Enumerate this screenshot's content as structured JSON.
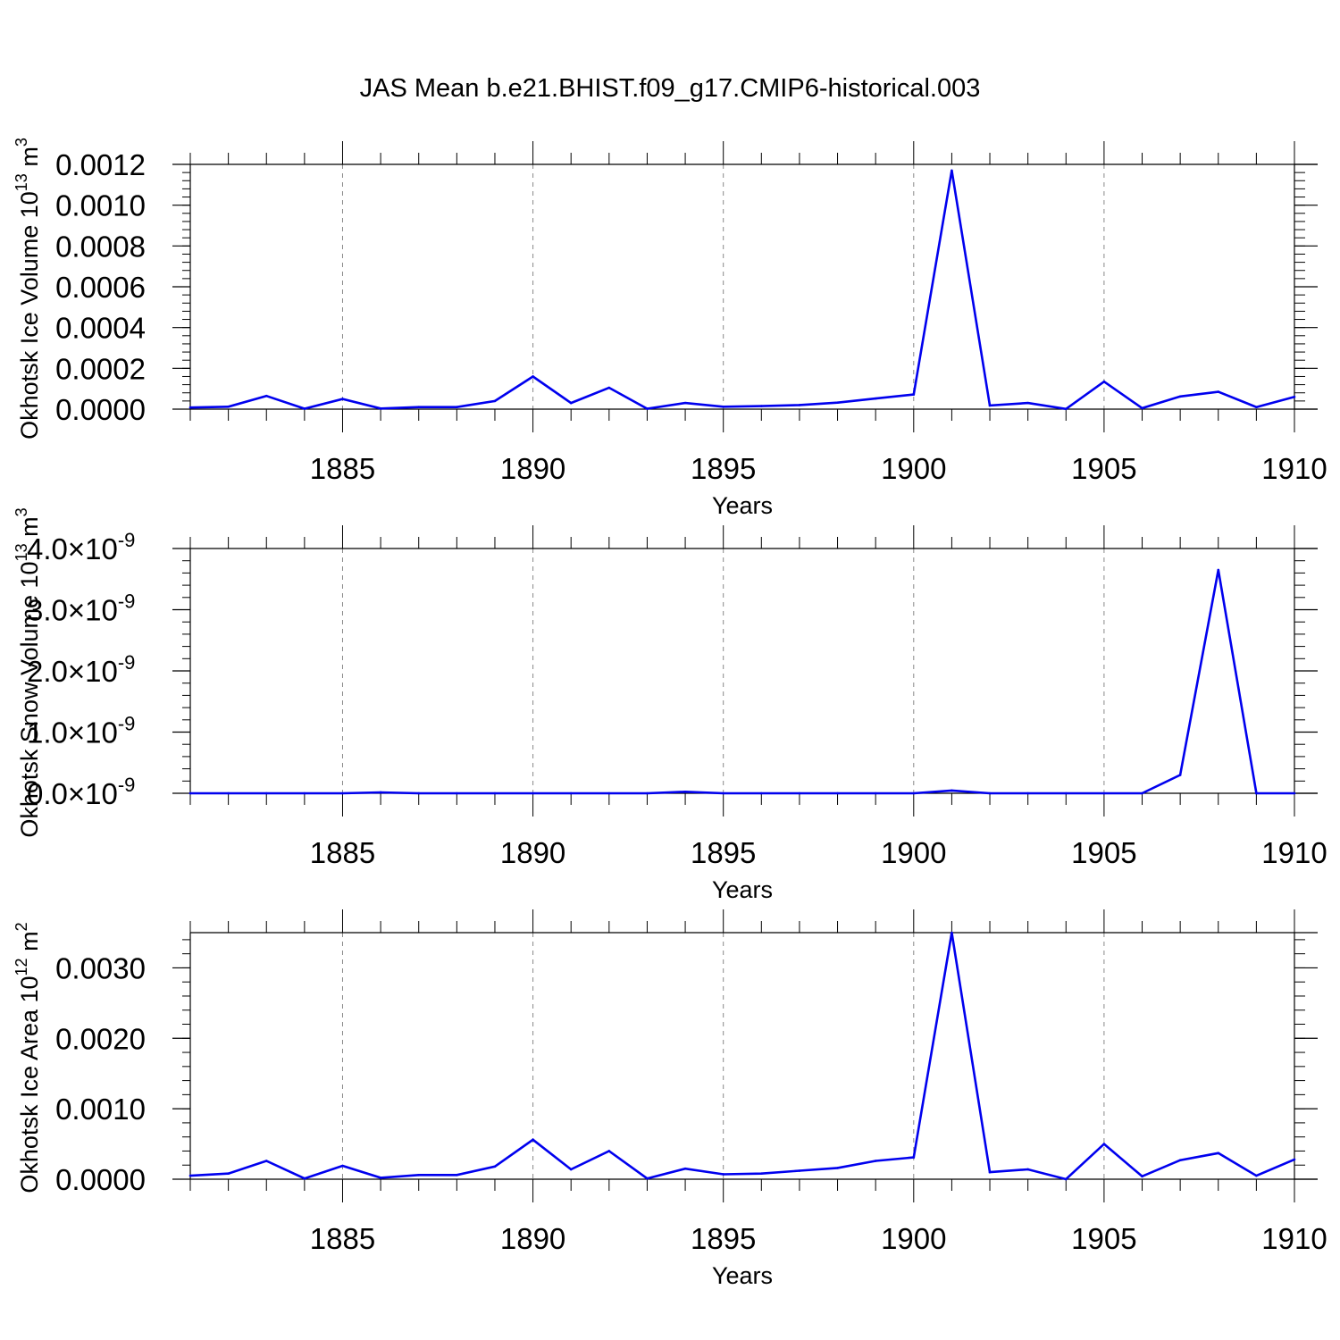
{
  "title": "JAS Mean b.e21.BHIST.f09_g17.CMIP6-historical.003",
  "colors": {
    "series": "#0000ee",
    "axis": "#000000",
    "grid": "#888888"
  },
  "chart_data": [
    {
      "type": "line",
      "xlabel": "Years",
      "ylabel": "Okhotsk Ice Volume 10",
      "ylabel_sup": "13",
      "ylabel_unit": " m",
      "ylabel_unit_sup": "3",
      "xlim": [
        1881,
        1910
      ],
      "ylim": [
        0,
        0.0012
      ],
      "xticks": [
        1885,
        1890,
        1895,
        1900,
        1905,
        1910
      ],
      "xtick_labels": [
        "1885",
        "1890",
        "1895",
        "1900",
        "1905",
        "1910"
      ],
      "yticks": [
        0,
        0.0002,
        0.0004,
        0.0006,
        0.0008,
        0.001,
        0.0012
      ],
      "ytick_labels": [
        "0.0000",
        "0.0002",
        "0.0004",
        "0.0006",
        "0.0008",
        "0.0010",
        "0.0012"
      ],
      "grid": "x-dashed",
      "x": [
        1881,
        1882,
        1883,
        1884,
        1885,
        1886,
        1887,
        1888,
        1889,
        1890,
        1891,
        1892,
        1893,
        1894,
        1895,
        1896,
        1897,
        1898,
        1899,
        1900,
        1901,
        1902,
        1903,
        1904,
        1905,
        1906,
        1907,
        1908,
        1909,
        1910
      ],
      "values": [
        8e-06,
        1.2e-05,
        6.5e-05,
        2e-06,
        5e-05,
        3e-06,
        1e-05,
        1e-05,
        4e-05,
        0.00016,
        3e-05,
        0.000105,
        2e-06,
        3e-05,
        1.2e-05,
        1.5e-05,
        2e-05,
        3.2e-05,
        5.2e-05,
        7.2e-05,
        0.00117,
        1.8e-05,
        3e-05,
        1e-06,
        0.000135,
        5e-06,
        6.2e-05,
        8.5e-05,
        1e-05,
        6e-05
      ]
    },
    {
      "type": "line",
      "xlabel": "Years",
      "ylabel": "Okhotsk Snow Volume 10",
      "ylabel_sup": "13",
      "ylabel_unit": " m",
      "ylabel_unit_sup": "3",
      "xlim": [
        1881,
        1910
      ],
      "ylim": [
        0,
        4e-09
      ],
      "xticks": [
        1885,
        1890,
        1895,
        1900,
        1905,
        1910
      ],
      "xtick_labels": [
        "1885",
        "1890",
        "1895",
        "1900",
        "1905",
        "1910"
      ],
      "yticks": [
        0,
        1e-09,
        2e-09,
        3e-09,
        4e-09
      ],
      "ytick_labels": [
        "0.0",
        "1.0",
        "2.0",
        "3.0",
        "4.0"
      ],
      "ytick_mult": "×10",
      "ytick_exp": "-9",
      "grid": "x-dashed",
      "x": [
        1881,
        1882,
        1883,
        1884,
        1885,
        1886,
        1887,
        1888,
        1889,
        1890,
        1891,
        1892,
        1893,
        1894,
        1895,
        1896,
        1897,
        1898,
        1899,
        1900,
        1901,
        1902,
        1903,
        1904,
        1905,
        1906,
        1907,
        1908,
        1909,
        1910
      ],
      "values": [
        0,
        0,
        0,
        0,
        0,
        1.5e-11,
        0,
        0,
        0,
        0,
        0,
        0,
        0,
        2.5e-11,
        0,
        0,
        0,
        0,
        0,
        0,
        4.5e-11,
        0,
        0,
        0,
        0,
        0,
        3e-10,
        3.65e-09,
        0,
        0
      ]
    },
    {
      "type": "line",
      "xlabel": "Years",
      "ylabel": "Okhotsk Ice Area 10",
      "ylabel_sup": "12",
      "ylabel_unit": " m",
      "ylabel_unit_sup": "2",
      "xlim": [
        1881,
        1910
      ],
      "ylim": [
        0,
        0.0035
      ],
      "xticks": [
        1885,
        1890,
        1895,
        1900,
        1905,
        1910
      ],
      "xtick_labels": [
        "1885",
        "1890",
        "1895",
        "1900",
        "1905",
        "1910"
      ],
      "yticks": [
        0,
        0.001,
        0.002,
        0.003
      ],
      "ytick_labels": [
        "0.0000",
        "0.0010",
        "0.0020",
        "0.0030"
      ],
      "grid": "x-dashed",
      "x": [
        1881,
        1882,
        1883,
        1884,
        1885,
        1886,
        1887,
        1888,
        1889,
        1890,
        1891,
        1892,
        1893,
        1894,
        1895,
        1896,
        1897,
        1898,
        1899,
        1900,
        1901,
        1902,
        1903,
        1904,
        1905,
        1906,
        1907,
        1908,
        1909,
        1910
      ],
      "values": [
        5e-05,
        8e-05,
        0.00026,
        1e-05,
        0.00019,
        2e-05,
        6e-05,
        6e-05,
        0.00018,
        0.00056,
        0.00014,
        0.0004,
        1e-05,
        0.00015,
        7e-05,
        8e-05,
        0.00012,
        0.00016,
        0.00026,
        0.00031,
        0.0035,
        0.0001,
        0.00014,
        0.0,
        0.0005,
        4e-05,
        0.00027,
        0.00037,
        5e-05,
        0.00028
      ]
    }
  ]
}
